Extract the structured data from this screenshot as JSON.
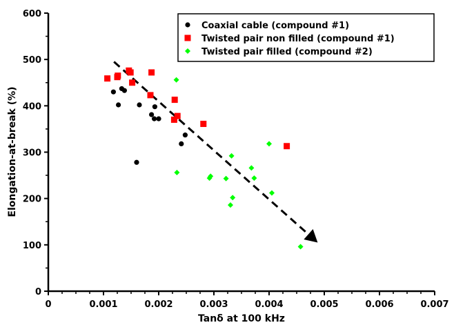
{
  "chart_data": {
    "type": "scatter",
    "title": "",
    "xlabel": "Tanδ at 100 kHz",
    "ylabel": "Elongation-at-break (%)",
    "xlim": [
      0,
      0.007
    ],
    "ylim": [
      0,
      600
    ],
    "x_ticks": [
      "0",
      "0.001",
      "0.002",
      "0.003",
      "0.004",
      "0.005",
      "0.006",
      "0.007"
    ],
    "y_ticks": [
      "0",
      "100",
      "200",
      "300",
      "400",
      "500",
      "600"
    ],
    "legend_position": "top-right",
    "grid": false,
    "series": [
      {
        "name": "Coaxial cable (compound #1)",
        "marker": "circle",
        "color": "#000000",
        "points": [
          [
            0.00118,
            430
          ],
          [
            0.00127,
            402
          ],
          [
            0.00133,
            437
          ],
          [
            0.00138,
            433
          ],
          [
            0.0016,
            278
          ],
          [
            0.00165,
            402
          ],
          [
            0.00187,
            381
          ],
          [
            0.00192,
            372
          ],
          [
            0.00193,
            398
          ],
          [
            0.002,
            372
          ],
          [
            0.00241,
            318
          ],
          [
            0.00248,
            337
          ]
        ]
      },
      {
        "name": "Twisted pair non filled (compound #1)",
        "marker": "square",
        "color": "#ff0000",
        "points": [
          [
            0.00107,
            459
          ],
          [
            0.00125,
            462
          ],
          [
            0.00126,
            465
          ],
          [
            0.00146,
            476
          ],
          [
            0.00149,
            472
          ],
          [
            0.00152,
            450
          ],
          [
            0.00185,
            423
          ],
          [
            0.00187,
            472
          ],
          [
            0.00228,
            370
          ],
          [
            0.00229,
            413
          ],
          [
            0.00234,
            378
          ],
          [
            0.00281,
            361
          ],
          [
            0.00432,
            313
          ]
        ]
      },
      {
        "name": "Twisted pair filled (compound #2)",
        "marker": "diamond",
        "color": "#00ff00",
        "points": [
          [
            0.00232,
            456
          ],
          [
            0.00233,
            256
          ],
          [
            0.00292,
            244
          ],
          [
            0.00294,
            248
          ],
          [
            0.00322,
            243
          ],
          [
            0.0033,
            186
          ],
          [
            0.00332,
            292
          ],
          [
            0.00334,
            202
          ],
          [
            0.00368,
            266
          ],
          [
            0.00373,
            244
          ],
          [
            0.004,
            318
          ],
          [
            0.00405,
            212
          ],
          [
            0.00457,
            96
          ]
        ]
      }
    ],
    "annotations": [
      {
        "type": "dashed-arrow",
        "color": "#000000",
        "from": [
          0.00119,
          495
        ],
        "to": [
          0.00488,
          105
        ]
      }
    ]
  }
}
